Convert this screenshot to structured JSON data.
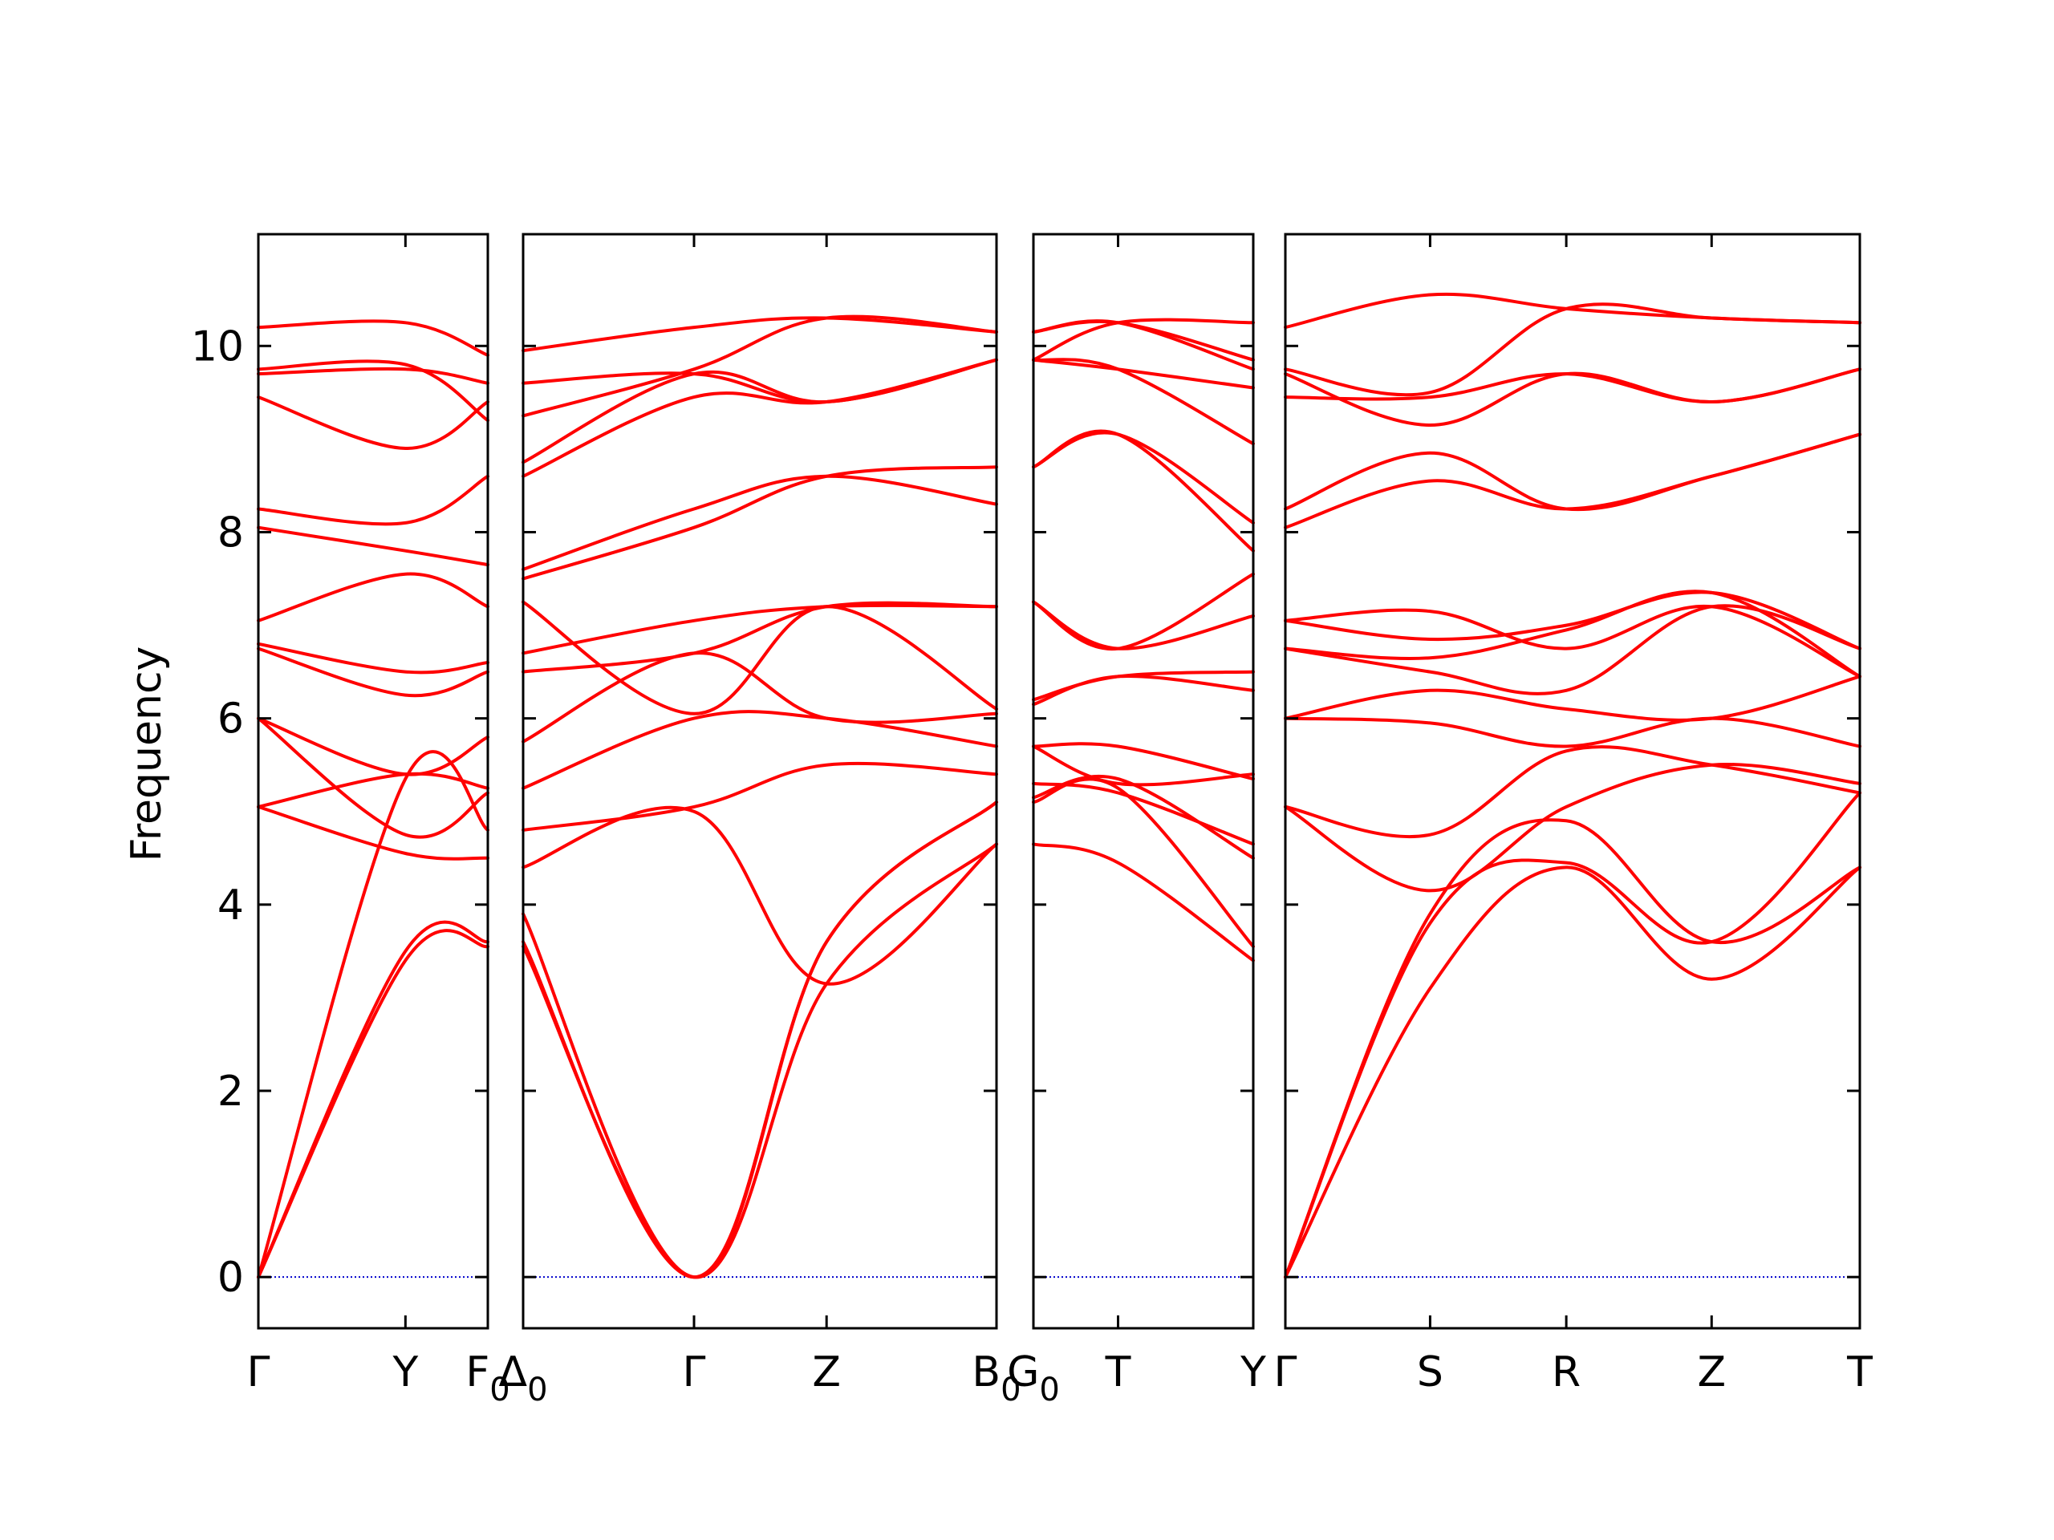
{
  "chart_data": {
    "type": "line",
    "ylabel": "Frequency",
    "ylim": [
      -0.55,
      11.2
    ],
    "yticks": [
      0,
      2,
      4,
      6,
      8,
      10
    ],
    "ytick_labels": [
      "0",
      "2",
      "4",
      "6",
      "8",
      "10"
    ],
    "line_color": "#ff0000",
    "zero_line_color": "#0000cc",
    "panels": [
      {
        "name": "panel-1",
        "x": [
          0,
          0.641,
          1.0
        ],
        "xtick_labels": [
          "Γ",
          "Y",
          "F0"
        ],
        "bands": [
          [
            0,
            3.5,
            3.6
          ],
          [
            0,
            3.4,
            3.55
          ],
          [
            0,
            5.35,
            4.8
          ],
          [
            5.05,
            5.4,
            5.25
          ],
          [
            5.05,
            4.55,
            4.5
          ],
          [
            6.0,
            4.75,
            5.2
          ],
          [
            6.0,
            5.4,
            5.8
          ],
          [
            6.75,
            6.25,
            6.5
          ],
          [
            6.8,
            6.5,
            6.6
          ],
          [
            7.05,
            7.55,
            7.2
          ],
          [
            8.05,
            7.8,
            7.65
          ],
          [
            8.25,
            8.1,
            8.6
          ],
          [
            9.45,
            8.9,
            9.4
          ],
          [
            9.7,
            9.75,
            9.6
          ],
          [
            9.75,
            9.8,
            9.2
          ],
          [
            10.2,
            10.25,
            9.9
          ]
        ]
      },
      {
        "name": "panel-2",
        "x": [
          0,
          0.361,
          0.641,
          1.0
        ],
        "xtick_labels": [
          "Δ0",
          "Γ",
          "Z",
          "B0"
        ],
        "bands": [
          [
            3.55,
            0,
            3.15,
            4.65
          ],
          [
            3.6,
            0,
            3.6,
            5.1
          ],
          [
            3.9,
            0,
            3.6,
            5.1
          ],
          [
            4.4,
            5.0,
            3.15,
            4.65
          ],
          [
            4.8,
            5.05,
            5.5,
            5.4
          ],
          [
            5.25,
            6.0,
            6.0,
            5.7
          ],
          [
            5.75,
            6.7,
            6.0,
            6.05
          ],
          [
            6.5,
            6.7,
            7.2,
            7.2
          ],
          [
            6.7,
            7.05,
            7.2,
            7.2
          ],
          [
            7.25,
            6.05,
            7.2,
            6.1
          ],
          [
            7.5,
            8.05,
            8.6,
            8.7
          ],
          [
            7.6,
            8.25,
            8.6,
            8.3
          ],
          [
            8.6,
            9.45,
            9.4,
            9.85
          ],
          [
            8.75,
            9.7,
            9.4,
            9.85
          ],
          [
            9.25,
            9.75,
            10.3,
            10.15
          ],
          [
            9.6,
            9.7,
            9.4,
            9.85
          ],
          [
            9.95,
            10.2,
            10.3,
            10.15
          ]
        ]
      },
      {
        "name": "panel-3",
        "x": [
          0,
          0.385,
          1.0
        ],
        "xtick_labels": [
          "G0",
          "T",
          "Y"
        ],
        "bands": [
          [
            4.65,
            4.45,
            3.4
          ],
          [
            5.1,
            5.25,
            3.55
          ],
          [
            5.15,
            5.35,
            4.5
          ],
          [
            5.3,
            5.2,
            4.65
          ],
          [
            5.7,
            5.7,
            5.35
          ],
          [
            5.7,
            5.3,
            5.4
          ],
          [
            6.15,
            6.45,
            6.3
          ],
          [
            6.2,
            6.45,
            6.5
          ],
          [
            7.25,
            6.75,
            7.1
          ],
          [
            7.25,
            6.75,
            7.55
          ],
          [
            8.7,
            9.05,
            7.8
          ],
          [
            8.7,
            9.05,
            8.1
          ],
          [
            9.85,
            9.75,
            8.95
          ],
          [
            9.85,
            9.75,
            9.55
          ],
          [
            10.15,
            10.25,
            9.75
          ],
          [
            10.15,
            10.25,
            9.85
          ],
          [
            9.85,
            10.25,
            10.25
          ]
        ]
      },
      {
        "name": "panel-4",
        "x": [
          0,
          0.252,
          0.489,
          0.742,
          1.0
        ],
        "xtick_labels": [
          "Γ",
          "S",
          "R",
          "Z",
          "T"
        ],
        "bands": [
          [
            0,
            3.1,
            4.4,
            3.2,
            4.4
          ],
          [
            0,
            3.8,
            4.45,
            3.6,
            5.2
          ],
          [
            0,
            3.9,
            4.9,
            3.6,
            4.4
          ],
          [
            5.05,
            4.15,
            5.05,
            5.5,
            5.3
          ],
          [
            5.05,
            4.75,
            5.65,
            5.5,
            5.2
          ],
          [
            6.0,
            5.95,
            5.7,
            6.0,
            5.7
          ],
          [
            6.0,
            6.3,
            6.1,
            6.0,
            6.45
          ],
          [
            6.75,
            6.5,
            6.3,
            7.2,
            6.75
          ],
          [
            6.75,
            6.65,
            6.95,
            7.35,
            6.45
          ],
          [
            7.05,
            6.85,
            7.0,
            7.35,
            6.75
          ],
          [
            7.05,
            7.15,
            6.75,
            7.2,
            6.45
          ],
          [
            8.05,
            8.55,
            8.25,
            8.6,
            9.05
          ],
          [
            8.25,
            8.85,
            8.25,
            8.6,
            9.05
          ],
          [
            9.45,
            9.45,
            9.7,
            9.4,
            9.75
          ],
          [
            9.7,
            9.15,
            9.7,
            9.4,
            9.75
          ],
          [
            9.75,
            9.5,
            10.4,
            10.3,
            10.25
          ],
          [
            10.2,
            10.55,
            10.4,
            10.3,
            10.25
          ]
        ]
      }
    ]
  }
}
